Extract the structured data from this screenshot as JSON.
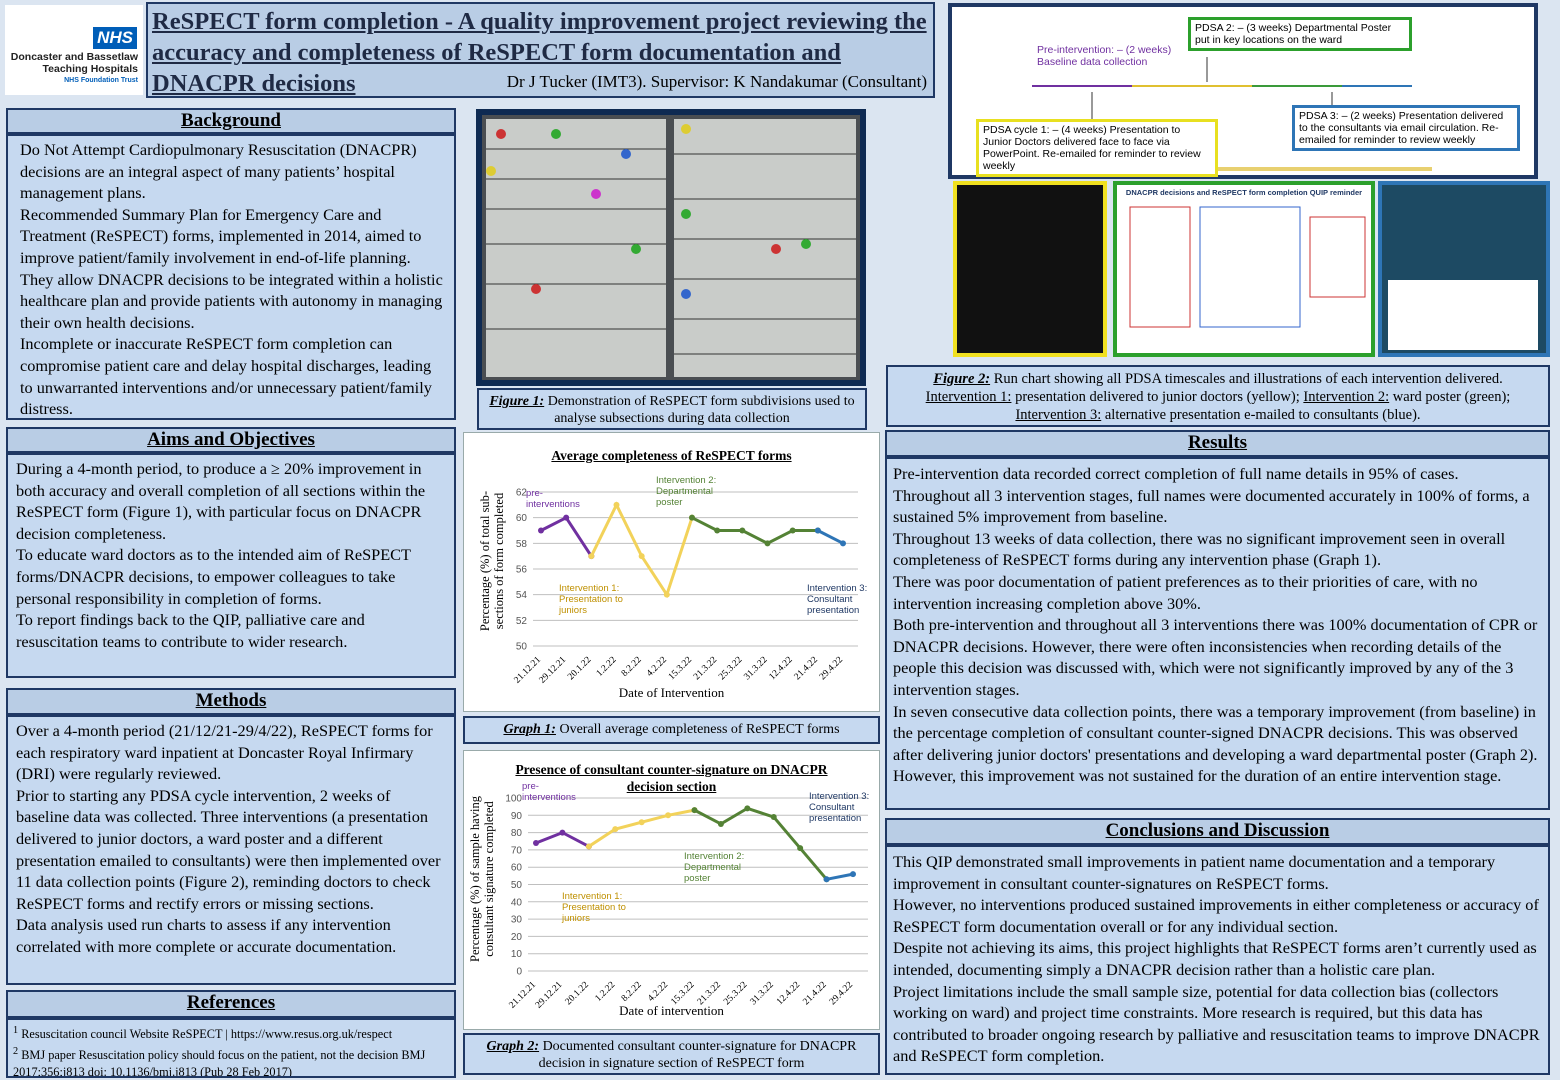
{
  "header": {
    "logo": {
      "nhs": "NHS",
      "lines": [
        "Doncaster and Bassetlaw",
        "Teaching Hospitals",
        "NHS Foundation Trust"
      ]
    },
    "title": "ReSPECT form completion - A quality improvement project reviewing the accuracy and completeness of ReSPECT form documentation and DNACPR decisions",
    "authors": "Dr J Tucker (IMT3). Supervisor: K Nandakumar (Consultant)"
  },
  "sections": {
    "background": {
      "heading": "Background",
      "paragraphs": [
        "Do Not Attempt Cardiopulmonary Resuscitation (DNACPR) decisions are an integral aspect of many patients’ hospital management plans.",
        "Recommended Summary Plan for Emergency Care and Treatment (ReSPECT) forms, implemented in 2014, aimed to improve patient/family involvement in end-of-life planning. They allow DNACPR decisions to be integrated within a holistic healthcare plan and provide patients with autonomy in managing their own health decisions.",
        "Incomplete or inaccurate ReSPECT form completion can compromise patient care and delay hospital discharges, leading to unwarranted interventions and/or unnecessary patient/family distress."
      ]
    },
    "aims": {
      "heading": "Aims and Objectives",
      "paragraphs": [
        "During a 4-month period, to produce a ≥ 20% improvement in both accuracy and overall completion of all sections within the ReSPECT form (Figure 1), with particular focus on DNACPR decision completeness.",
        "To educate ward doctors as to the intended aim of ReSPECT forms/DNACPR decisions, to empower colleagues to take personal responsibility in completion of forms.",
        "To report findings back to the QIP, palliative care and resuscitation teams to contribute to wider research."
      ]
    },
    "methods": {
      "heading": "Methods",
      "paragraphs": [
        "Over a 4-month period (21/12/21-29/4/22), ReSPECT forms for each respiratory ward inpatient at Doncaster Royal Infirmary (DRI) were regularly reviewed.",
        "Prior to starting any PDSA cycle intervention, 2 weeks of baseline data was collected. Three interventions (a presentation delivered to junior doctors, a ward poster and a different presentation emailed to consultants) were then implemented over 11 data collection points (Figure 2), reminding doctors to check ReSPECT forms and rectify errors or missing sections.",
        "Data analysis used run charts to assess if any intervention correlated with more complete or accurate documentation."
      ]
    },
    "results": {
      "heading": "Results",
      "paragraphs": [
        "Pre-intervention data recorded correct completion of full name details in 95% of cases.",
        "Throughout all 3 intervention stages, full names were documented accurately in 100% of forms, a sustained 5% improvement from baseline.",
        "Throughout 13 weeks of data collection, there was no significant improvement seen in overall completeness of ReSPECT forms during any intervention phase (Graph 1).",
        "There was poor documentation of patient preferences as to their priorities of care, with no intervention increasing completion above 30%.",
        "Both pre-intervention and throughout all 3 interventions there was 100% documentation of CPR or DNACPR decisions. However, there were often inconsistencies when recording details of the people this decision was discussed with, which were not significantly improved by any of the 3 intervention stages.",
        "In seven consecutive data collection points, there was a temporary improvement (from baseline) in the percentage completion of consultant counter-signed DNACPR decisions. This was observed after delivering junior doctors' presentations and developing a ward departmental poster (Graph 2). However, this improvement was not sustained for the duration of an entire intervention stage."
      ]
    },
    "conclusions": {
      "heading": "Conclusions and Discussion",
      "paragraphs": [
        "This QIP demonstrated small improvements in patient name documentation and a temporary improvement in consultant counter-signatures on ReSPECT forms.",
        "However, no interventions produced sustained improvements in either completeness or accuracy of ReSPECT form documentation overall or for any individual section.",
        "Despite not achieving its aims, this project highlights that ReSPECT forms aren’t currently used as intended, documenting simply a DNACPR decision rather than a holistic care plan.",
        "Project limitations include the small sample size, potential for data collection bias (collectors working on ward) and project time constraints. More research is required, but this data has contributed to broader ongoing research by palliative and resuscitation teams to improve DNACPR and ReSPECT form completion."
      ]
    }
  },
  "references": {
    "heading": "References",
    "items": [
      {
        "number": "1",
        "text": "Resuscitation council Website ReSPECT | https://www.resus.org.uk/respect"
      },
      {
        "number": "2",
        "text": "BMJ paper Resuscitation policy should focus on the patient, not the decision BMJ 2017;356;j813 doi: 10.1136/bmj.j813 (Pub 28 Feb 2017)"
      }
    ]
  },
  "figure1": {
    "caption": {
      "label": "Figure 1:",
      "text": "Demonstration of ReSPECT form subdivisions used to analyse subsections during data collection"
    }
  },
  "figure2": {
    "run_chart_labels": [
      "Pre-intervention: – (2 weeks) Baseline data collection",
      "PDSA 2: – (3 weeks) Departmental Poster put in key locations on the ward",
      "PDSA cycle 1: – (4 weeks) Presentation to Junior Doctors delivered face to face via PowerPoint. Re-emailed for reminder to review weekly",
      "PDSA 3: – (2 weeks) Presentation delivered to the consultants via email circulation. Re-emailed for reminder to review weekly"
    ],
    "thumbnail_title": "DNACPR decisions and ReSPECT form completion QUIP reminder",
    "caption": {
      "label": "Figure 2:",
      "text": "Run chart showing all PDSA timescales and illustrations of each intervention delivered.",
      "items": [
        {
          "label": "Intervention 1:",
          "text": "presentation delivered to junior doctors (yellow);"
        },
        {
          "label": "Intervention 2:",
          "text": "ward poster (green);"
        },
        {
          "label": "Intervention 3:",
          "text": "alternative presentation e-mailed to consultants (blue)."
        }
      ]
    }
  },
  "chart_data": [
    {
      "type": "line",
      "title": "Average completeness of ReSPECT forms",
      "x_label": "Date of Intervention",
      "y_label": "Percentage (%) of total sub-sections of form completed",
      "categories": [
        "21.12.21",
        "29.12.21",
        "20.1.22",
        "1.2.22",
        "8.2.22",
        "4.2.22",
        "15.3.22",
        "21.3.22",
        "25.3.22",
        "31.3.22",
        "12.4.22",
        "21.4.22",
        "29.4.22"
      ],
      "series": [
        {
          "color": "#7030a0",
          "values": [
            59,
            60,
            57,
            null,
            null,
            null,
            null,
            null,
            null,
            null,
            null,
            null,
            null
          ]
        },
        {
          "color": "#f2d25a",
          "values": [
            null,
            null,
            57,
            61,
            57,
            54,
            60,
            null,
            null,
            null,
            null,
            null,
            null
          ]
        },
        {
          "color": "#548235",
          "values": [
            null,
            null,
            null,
            null,
            null,
            null,
            60,
            59,
            59,
            58,
            59,
            59,
            null
          ]
        },
        {
          "color": "#2e75b6",
          "values": [
            null,
            null,
            null,
            null,
            null,
            null,
            null,
            null,
            null,
            null,
            null,
            59,
            58
          ]
        }
      ],
      "ylim": [
        50,
        62
      ],
      "yticks": [
        50,
        52,
        54,
        56,
        58,
        60,
        62
      ],
      "grid": true,
      "annotations": [
        {
          "text": "pre-interventions",
          "color": "#7030a0"
        },
        {
          "text": "Intervention 1: Presentation to juniors",
          "color": "#bf9000"
        },
        {
          "text": "Intervention 2: Departmental poster",
          "color": "#548235"
        },
        {
          "text": "Intervention 3: Consultant presentation",
          "color": "#1f3864"
        }
      ]
    },
    {
      "type": "line",
      "title": "Presence of consultant counter-signature on DNACPR decision section",
      "x_label": "Date of intervention",
      "y_label": "Percentage (%) of sample having consultant signature completed",
      "categories": [
        "21.12.21",
        "29.12.21",
        "20.1.22",
        "1.2.22",
        "8.2.22",
        "4.2.22",
        "15.3.22",
        "21.3.22",
        "25.3.22",
        "31.3.22",
        "12.4.22",
        "21.4.22",
        "29.4.22"
      ],
      "series": [
        {
          "color": "#7030a0",
          "values": [
            74,
            80,
            72,
            null,
            null,
            null,
            null,
            null,
            null,
            null,
            null,
            null,
            null
          ]
        },
        {
          "color": "#f2d25a",
          "values": [
            null,
            null,
            72,
            82,
            86,
            90,
            93,
            null,
            null,
            null,
            null,
            null,
            null
          ]
        },
        {
          "color": "#548235",
          "values": [
            null,
            null,
            null,
            null,
            null,
            null,
            93,
            85,
            94,
            89,
            71,
            53,
            null
          ]
        },
        {
          "color": "#2e75b6",
          "values": [
            null,
            null,
            null,
            null,
            null,
            null,
            null,
            null,
            null,
            null,
            null,
            53,
            56
          ]
        }
      ],
      "ylim": [
        0,
        100
      ],
      "yticks": [
        0,
        10,
        20,
        30,
        40,
        50,
        60,
        70,
        80,
        90,
        100
      ],
      "grid": true,
      "annotations": [
        {
          "text": "pre-interventions",
          "color": "#7030a0"
        },
        {
          "text": "Intervention 1: Presentation to juniors",
          "color": "#bf9000"
        },
        {
          "text": "Intervention 2: Departmental poster",
          "color": "#548235"
        },
        {
          "text": "Intervention 3: Consultant presentation",
          "color": "#1f3864"
        }
      ]
    }
  ],
  "graph_captions": [
    {
      "label": "Graph 1:",
      "text": "Overall average completeness of ReSPECT forms"
    },
    {
      "label": "Graph 2:",
      "text": "Documented consultant counter-signature for DNACPR decision in signature section of ReSPECT form"
    }
  ]
}
